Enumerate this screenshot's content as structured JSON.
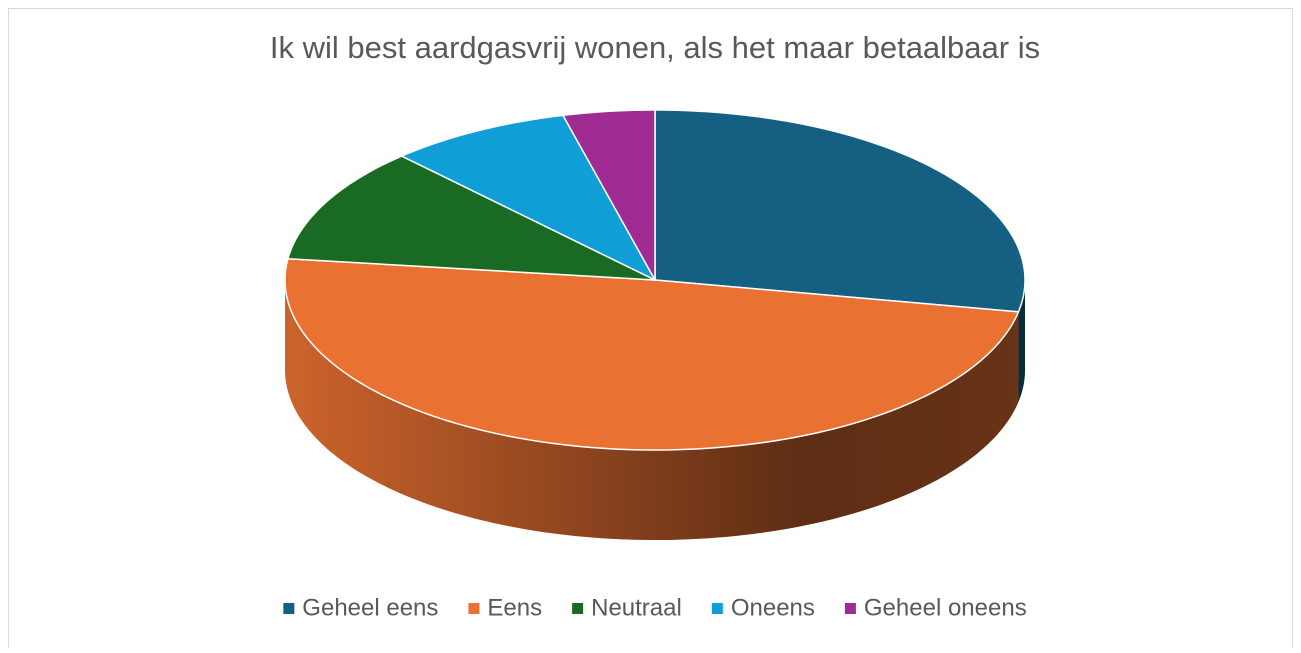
{
  "chart_data": {
    "type": "pie",
    "title": "Ik wil best aardgasvrij wonen, als het maar betaalbaar is",
    "categories": [
      "Geheel eens",
      "Eens",
      "Neutraal",
      "Oneens",
      "Geheel oneens"
    ],
    "values": [
      28,
      49,
      11,
      8,
      4
    ],
    "colors": [
      "#156082",
      "#e97132",
      "#196b24",
      "#0f9ed5",
      "#a02b93"
    ],
    "legend": "bottom"
  }
}
